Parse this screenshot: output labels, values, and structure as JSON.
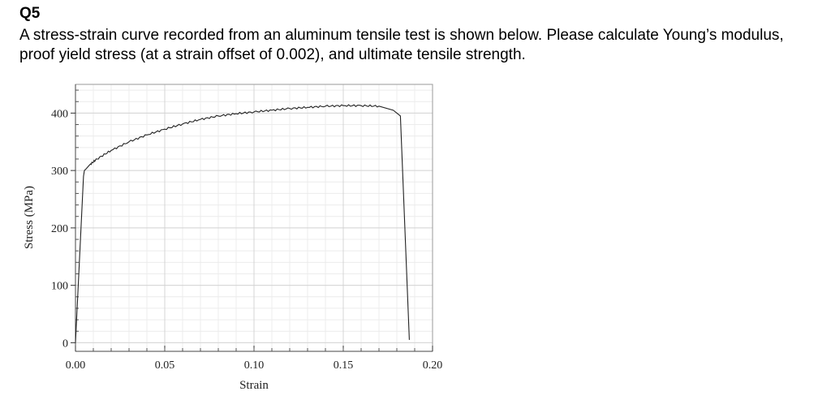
{
  "question": {
    "title": "Q5",
    "text": "A stress-strain curve recorded from an aluminum tensile test is shown below. Please calculate Young’s modulus, proof yield stress (at a strain offset of 0.002), and ultimate tensile strength."
  },
  "chart_data": {
    "type": "line",
    "xlabel": "Strain",
    "ylabel": "Stress (MPa)",
    "xlim": [
      0,
      0.2
    ],
    "ylim": [
      -15,
      450
    ],
    "x_ticks": [
      "0.00",
      "0.05",
      "0.10",
      "0.15",
      "0.20"
    ],
    "y_ticks": [
      "0",
      "100",
      "200",
      "300",
      "400"
    ],
    "grid": true,
    "line_color": "#222222",
    "grid_color": "#d4d4d4",
    "series": [
      {
        "x": [
          0.0,
          0.0045,
          0.005,
          0.006,
          0.008,
          0.012,
          0.02,
          0.03,
          0.04,
          0.05,
          0.06,
          0.07,
          0.08,
          0.09,
          0.1,
          0.11,
          0.12,
          0.13,
          0.14,
          0.15,
          0.16,
          0.17,
          0.178,
          0.182,
          0.187
        ],
        "y": [
          0,
          290,
          300,
          303,
          310,
          320,
          335,
          350,
          362,
          372,
          381,
          389,
          395,
          399,
          402,
          405,
          408,
          410,
          412,
          413,
          413,
          412,
          405,
          395,
          5
        ]
      }
    ]
  }
}
